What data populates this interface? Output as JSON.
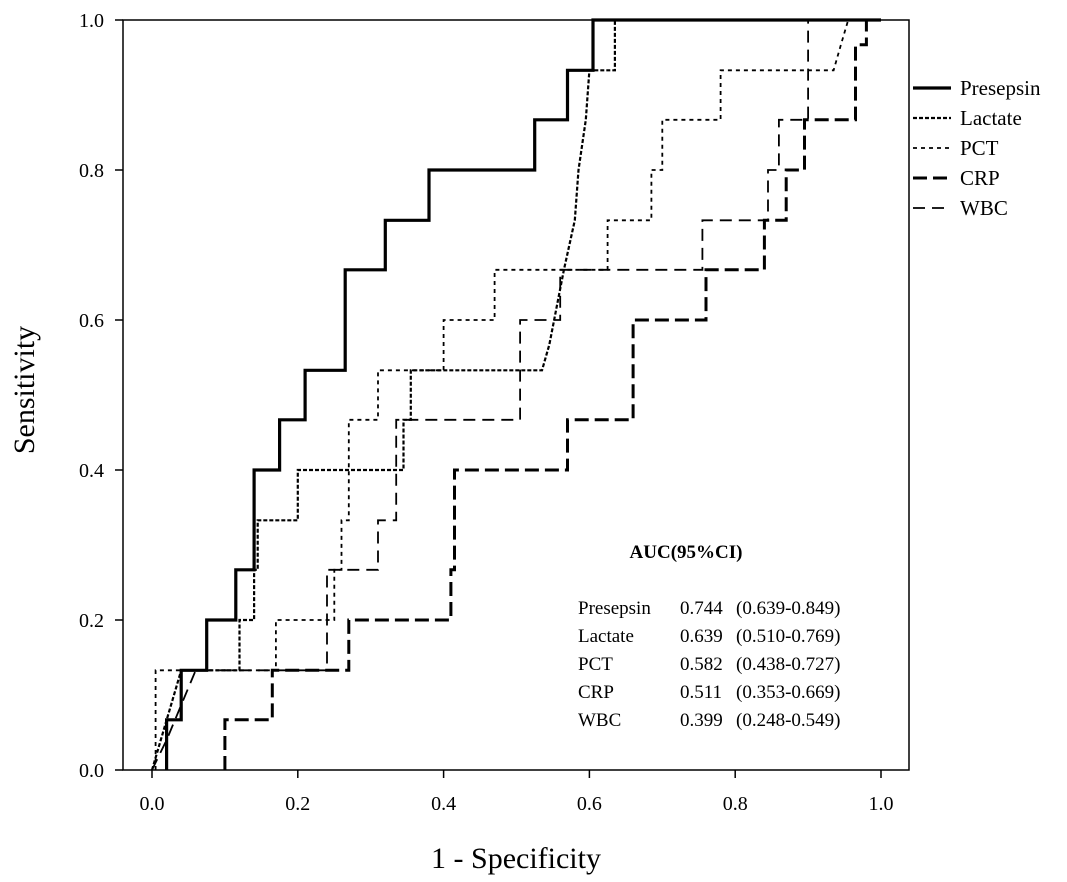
{
  "chart_data": {
    "type": "line",
    "xlabel": "1 - Specificity",
    "ylabel": "Sensitivity",
    "xlim": [
      0,
      1
    ],
    "ylim": [
      0,
      1
    ],
    "x_ticks": [
      "0.0",
      "0.2",
      "0.4",
      "0.6",
      "0.8",
      "1.0"
    ],
    "y_ticks": [
      "0.0",
      "0.2",
      "0.4",
      "0.6",
      "0.8",
      "1.0"
    ],
    "legend_position": "right",
    "grid": false,
    "series": [
      {
        "name": "Presepsin",
        "style": "solid",
        "points": [
          [
            0.02,
            0
          ],
          [
            0.02,
            0.067
          ],
          [
            0.04,
            0.067
          ],
          [
            0.04,
            0.133
          ],
          [
            0.075,
            0.133
          ],
          [
            0.075,
            0.2
          ],
          [
            0.115,
            0.2
          ],
          [
            0.115,
            0.267
          ],
          [
            0.14,
            0.267
          ],
          [
            0.14,
            0.4
          ],
          [
            0.175,
            0.4
          ],
          [
            0.175,
            0.467
          ],
          [
            0.21,
            0.467
          ],
          [
            0.21,
            0.533
          ],
          [
            0.265,
            0.533
          ],
          [
            0.265,
            0.667
          ],
          [
            0.32,
            0.667
          ],
          [
            0.32,
            0.733
          ],
          [
            0.38,
            0.733
          ],
          [
            0.38,
            0.8
          ],
          [
            0.525,
            0.8
          ],
          [
            0.525,
            0.867
          ],
          [
            0.57,
            0.867
          ],
          [
            0.57,
            0.933
          ],
          [
            0.605,
            0.933
          ],
          [
            0.605,
            1
          ],
          [
            1,
            1
          ]
        ]
      },
      {
        "name": "Lactate",
        "style": "dotted-heavy",
        "points": [
          [
            0,
            0
          ],
          [
            0.04,
            0.133
          ],
          [
            0.06,
            0.133
          ],
          [
            0.12,
            0.133
          ],
          [
            0.12,
            0.2
          ],
          [
            0.14,
            0.2
          ],
          [
            0.14,
            0.267
          ],
          [
            0.145,
            0.267
          ],
          [
            0.145,
            0.333
          ],
          [
            0.2,
            0.333
          ],
          [
            0.2,
            0.4
          ],
          [
            0.345,
            0.4
          ],
          [
            0.345,
            0.467
          ],
          [
            0.355,
            0.467
          ],
          [
            0.355,
            0.533
          ],
          [
            0.535,
            0.533
          ],
          [
            0.545,
            0.567
          ],
          [
            0.565,
            0.667
          ],
          [
            0.58,
            0.733
          ],
          [
            0.585,
            0.8
          ],
          [
            0.595,
            0.867
          ],
          [
            0.6,
            0.933
          ],
          [
            0.635,
            0.933
          ],
          [
            0.635,
            1
          ],
          [
            1,
            1
          ]
        ]
      },
      {
        "name": "PCT",
        "style": "dotted",
        "points": [
          [
            0.005,
            0
          ],
          [
            0.005,
            0.133
          ],
          [
            0.17,
            0.133
          ],
          [
            0.17,
            0.2
          ],
          [
            0.25,
            0.2
          ],
          [
            0.25,
            0.267
          ],
          [
            0.26,
            0.267
          ],
          [
            0.26,
            0.333
          ],
          [
            0.27,
            0.333
          ],
          [
            0.27,
            0.467
          ],
          [
            0.31,
            0.467
          ],
          [
            0.31,
            0.533
          ],
          [
            0.4,
            0.533
          ],
          [
            0.4,
            0.6
          ],
          [
            0.47,
            0.6
          ],
          [
            0.47,
            0.667
          ],
          [
            0.555,
            0.667
          ],
          [
            0.555,
            0.667
          ],
          [
            0.625,
            0.667
          ],
          [
            0.625,
            0.733
          ],
          [
            0.685,
            0.733
          ],
          [
            0.685,
            0.8
          ],
          [
            0.7,
            0.8
          ],
          [
            0.7,
            0.867
          ],
          [
            0.78,
            0.867
          ],
          [
            0.78,
            0.933
          ],
          [
            0.935,
            0.933
          ],
          [
            0.945,
            0.967
          ],
          [
            0.955,
            1
          ],
          [
            1,
            1
          ]
        ]
      },
      {
        "name": "CRP",
        "style": "dashed-heavy",
        "points": [
          [
            0.1,
            0
          ],
          [
            0.1,
            0.067
          ],
          [
            0.165,
            0.067
          ],
          [
            0.165,
            0.133
          ],
          [
            0.27,
            0.133
          ],
          [
            0.27,
            0.2
          ],
          [
            0.41,
            0.2
          ],
          [
            0.41,
            0.267
          ],
          [
            0.415,
            0.267
          ],
          [
            0.415,
            0.4
          ],
          [
            0.57,
            0.4
          ],
          [
            0.57,
            0.467
          ],
          [
            0.66,
            0.467
          ],
          [
            0.66,
            0.6
          ],
          [
            0.76,
            0.6
          ],
          [
            0.76,
            0.667
          ],
          [
            0.84,
            0.667
          ],
          [
            0.84,
            0.733
          ],
          [
            0.87,
            0.733
          ],
          [
            0.87,
            0.8
          ],
          [
            0.895,
            0.8
          ],
          [
            0.895,
            0.867
          ],
          [
            0.965,
            0.867
          ],
          [
            0.965,
            0.967
          ],
          [
            0.98,
            0.967
          ],
          [
            0.98,
            1
          ],
          [
            1,
            1
          ]
        ]
      },
      {
        "name": "WBC",
        "style": "dashed",
        "points": [
          [
            0,
            0
          ],
          [
            0.02,
            0.04
          ],
          [
            0.06,
            0.133
          ],
          [
            0.24,
            0.133
          ],
          [
            0.24,
            0.267
          ],
          [
            0.31,
            0.267
          ],
          [
            0.31,
            0.333
          ],
          [
            0.335,
            0.333
          ],
          [
            0.335,
            0.467
          ],
          [
            0.505,
            0.467
          ],
          [
            0.505,
            0.6
          ],
          [
            0.56,
            0.6
          ],
          [
            0.56,
            0.667
          ],
          [
            0.755,
            0.667
          ],
          [
            0.755,
            0.733
          ],
          [
            0.845,
            0.733
          ],
          [
            0.845,
            0.8
          ],
          [
            0.86,
            0.8
          ],
          [
            0.86,
            0.867
          ],
          [
            0.9,
            0.867
          ],
          [
            0.9,
            1
          ],
          [
            1,
            1
          ]
        ]
      }
    ],
    "annotation": {
      "title": "AUC(95%CI)",
      "rows": [
        {
          "name": "Presepsin",
          "auc": "0.744",
          "ci": "(0.639-0.849)"
        },
        {
          "name": "Lactate",
          "auc": "0.639",
          "ci": "(0.510-0.769)"
        },
        {
          "name": "PCT",
          "auc": "0.582",
          "ci": "(0.438-0.727)"
        },
        {
          "name": "CRP",
          "auc": "0.511",
          "ci": "(0.353-0.669)"
        },
        {
          "name": "WBC",
          "auc": "0.399",
          "ci": "(0.248-0.549)"
        }
      ]
    }
  }
}
